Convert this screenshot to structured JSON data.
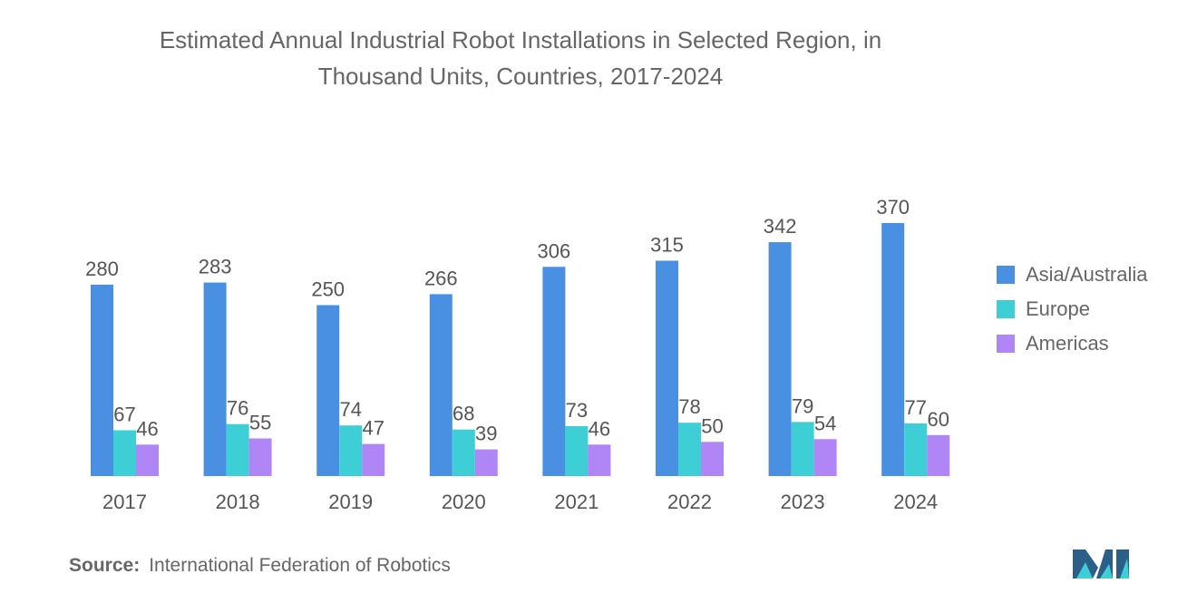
{
  "chart_data": {
    "type": "bar",
    "title_lines": [
      "Estimated Annual Industrial Robot Installations in Selected Region, in",
      "Thousand Units, Countries, 2017-2024"
    ],
    "categories": [
      "2017",
      "2018",
      "2019",
      "2020",
      "2021",
      "2022",
      "2023",
      "2024"
    ],
    "series": [
      {
        "name": "Asia/Australia",
        "color": "#4a90e2",
        "values": [
          280,
          283,
          250,
          266,
          306,
          315,
          342,
          370
        ]
      },
      {
        "name": "Europe",
        "color": "#3ecfd6",
        "values": [
          67,
          76,
          74,
          68,
          73,
          78,
          79,
          77
        ]
      },
      {
        "name": "Americas",
        "color": "#b085f5",
        "values": [
          46,
          55,
          47,
          39,
          46,
          50,
          54,
          60
        ]
      }
    ],
    "ylim": [
      0,
      370
    ],
    "data_labels": true,
    "grid": false,
    "legend_position": "right"
  },
  "source": {
    "label": "Source:",
    "text": "International Federation of Robotics"
  },
  "logo": {
    "icon": "mordor-intelligence-logo",
    "colors": [
      "#2b5f8a",
      "#3ecfd6"
    ]
  }
}
